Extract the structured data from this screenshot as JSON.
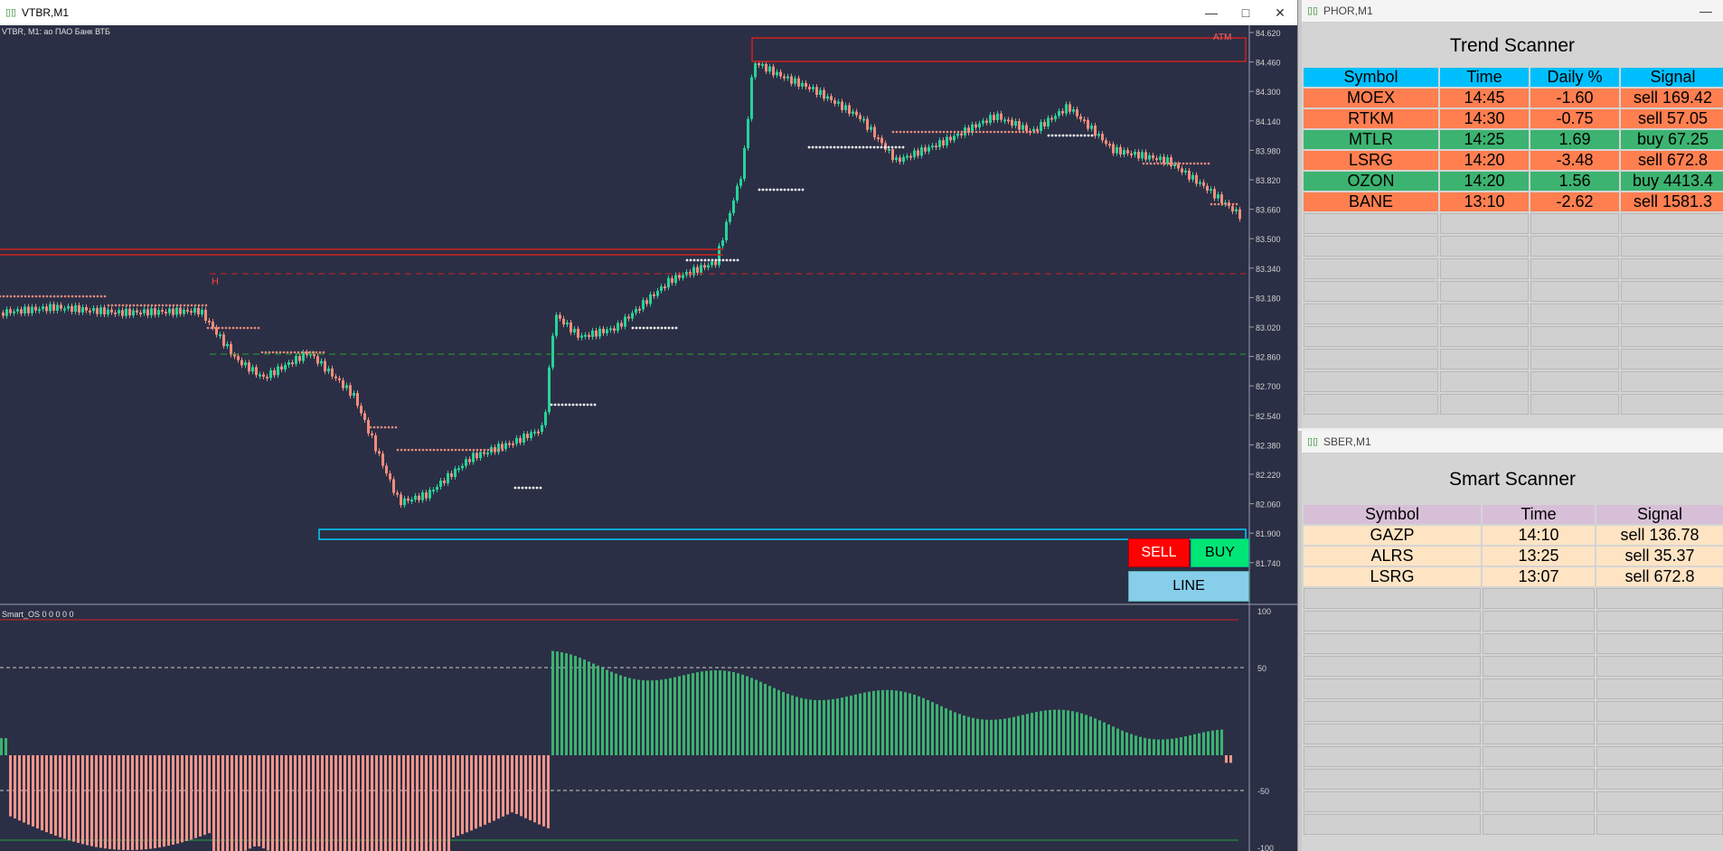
{
  "chart_window": {
    "title": "VTBR,M1",
    "pane_header": "VTBR, M1:  ао ПАО Банк ВТБ",
    "atm_label": "ATM",
    "h_label": "H",
    "osc_header": "Smart_OS 0 0 0 0 0",
    "price_ticks": [
      "84.620",
      "84.460",
      "84.300",
      "84.140",
      "83.980",
      "83.820",
      "83.660",
      "83.500",
      "83.340",
      "83.180",
      "83.020",
      "82.860",
      "82.700",
      "82.540",
      "82.380",
      "82.220",
      "82.060",
      "81.900",
      "81.740"
    ],
    "osc_ticks": [
      "100",
      "50",
      "-50",
      "-100"
    ]
  },
  "trade_panel": {
    "sell_label": "SELL",
    "buy_label": "BUY",
    "line_label": "LINE",
    "colors": {
      "sell": "#ff0000",
      "buy": "#00e676",
      "line": "#87ceeb"
    }
  },
  "trend_scanner": {
    "window_title": "PHOR,M1",
    "title": "Trend Scanner",
    "columns": [
      "Symbol",
      "Time",
      "Daily %",
      "Signal"
    ],
    "rows": [
      {
        "symbol": "MOEX",
        "time": "14:45",
        "daily": "-1.60",
        "signal": "sell 169.42",
        "side": "sell"
      },
      {
        "symbol": "RTKM",
        "time": "14:30",
        "daily": "-0.75",
        "signal": "sell 57.05",
        "side": "sell"
      },
      {
        "symbol": "MTLR",
        "time": "14:25",
        "daily": "1.69",
        "signal": "buy 67.25",
        "side": "buy"
      },
      {
        "symbol": "LSRG",
        "time": "14:20",
        "daily": "-3.48",
        "signal": "sell 672.8",
        "side": "sell"
      },
      {
        "symbol": "OZON",
        "time": "14:20",
        "daily": "1.56",
        "signal": "buy 4413.4",
        "side": "buy"
      },
      {
        "symbol": "BANE",
        "time": "13:10",
        "daily": "-2.62",
        "signal": "sell 1581.3",
        "side": "sell"
      }
    ],
    "empty_rows": 9,
    "colors": {
      "header": "#00bfff",
      "sell": "#ff7f50",
      "buy": "#3cb371"
    }
  },
  "smart_scanner": {
    "window_title": "SBER,M1",
    "title": "Smart Scanner",
    "columns": [
      "Symbol",
      "Time",
      "Signal"
    ],
    "rows": [
      {
        "symbol": "GAZP",
        "time": "14:10",
        "signal": "sell 136.78"
      },
      {
        "symbol": "ALRS",
        "time": "13:25",
        "signal": "sell 35.37"
      },
      {
        "symbol": "LSRG",
        "time": "13:07",
        "signal": "sell 672.8"
      }
    ],
    "empty_rows": 11,
    "colors": {
      "header": "#d8bfd8",
      "row": "#ffe4c4"
    }
  }
}
